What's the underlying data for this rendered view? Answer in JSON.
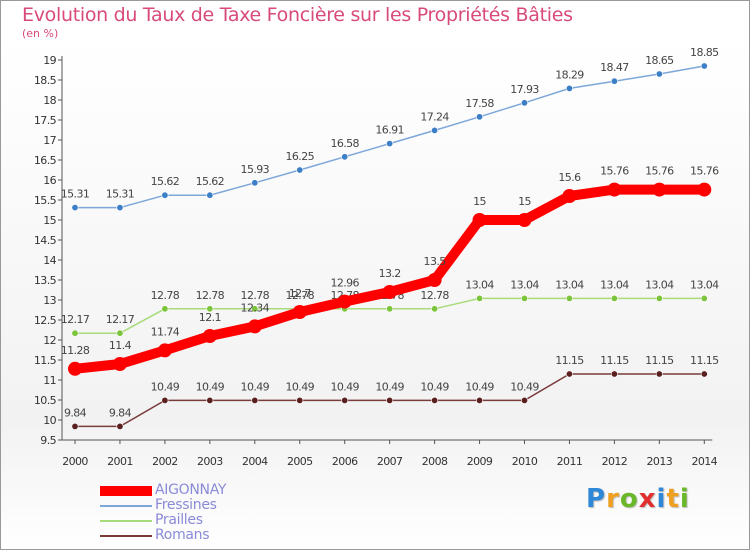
{
  "title": "Evolution du Taux de Taxe Foncière sur les Propriétés Bâties",
  "unit": "(en %)",
  "brand": {
    "text": "Proxiti",
    "letters": [
      "P",
      "r",
      "o",
      "x",
      "i",
      "t",
      "i"
    ],
    "colors": [
      "#2f87d8",
      "#f0a020",
      "#6ab82a",
      "#e03030",
      "#2f87d8",
      "#f0a020",
      "#6ab82a"
    ]
  },
  "chart_data": {
    "type": "line",
    "title": "Evolution du Taux de Taxe Foncière sur les Propriétés Bâties",
    "ylabel": "(en %)",
    "xlabel": "",
    "x": [
      "2000",
      "2001",
      "2002",
      "2003",
      "2004",
      "2005",
      "2006",
      "2007",
      "2008",
      "2009",
      "2010",
      "2011",
      "2012",
      "2013",
      "2014"
    ],
    "ylim": [
      9.5,
      19
    ],
    "yticks": [
      "9.5",
      "10",
      "10.5",
      "11",
      "11.5",
      "12",
      "12.5",
      "13",
      "13.5",
      "14",
      "14.5",
      "15",
      "15.5",
      "16",
      "16.5",
      "17",
      "17.5",
      "18",
      "18.5",
      "19"
    ],
    "grid": false,
    "legend": "bottom-left",
    "series": [
      {
        "name": "AIGONNAY",
        "color": "#ff0000",
        "emphasis": true,
        "values": [
          11.28,
          11.4,
          11.74,
          12.1,
          12.34,
          12.7,
          12.96,
          13.2,
          13.5,
          15,
          15,
          15.6,
          15.76,
          15.76,
          15.76
        ],
        "labels": [
          "11.28",
          "11.4",
          "11.74",
          "12.1",
          "12.34",
          "12.7",
          "12.96",
          "13.2",
          "13.5",
          "15",
          "15",
          "15.6",
          "15.76",
          "15.76",
          "15.76"
        ]
      },
      {
        "name": "Fressines",
        "color": "#7da7d9",
        "marker": "#3d7fc7",
        "values": [
          15.31,
          15.31,
          15.62,
          15.62,
          15.93,
          16.25,
          16.58,
          16.91,
          17.24,
          17.58,
          17.93,
          18.29,
          18.47,
          18.65,
          18.85
        ],
        "labels": [
          "15.31",
          "15.31",
          "15.62",
          "15.62",
          "15.93",
          "16.25",
          "16.58",
          "16.91",
          "17.24",
          "17.58",
          "17.93",
          "18.29",
          "18.47",
          "18.65",
          "18.85"
        ]
      },
      {
        "name": "Prailles",
        "color": "#a8dc7a",
        "marker": "#7cc43c",
        "values": [
          12.17,
          12.17,
          12.78,
          12.78,
          12.78,
          12.78,
          12.78,
          12.78,
          12.78,
          13.04,
          13.04,
          13.04,
          13.04,
          13.04,
          13.04
        ],
        "labels": [
          "12.17",
          "12.17",
          "12.78",
          "12.78",
          "12.78",
          "12.78",
          "12.78",
          "12.78",
          "12.78",
          "13.04",
          "13.04",
          "13.04",
          "13.04",
          "13.04",
          "13.04"
        ]
      },
      {
        "name": "Romans",
        "color": "#7a3b3b",
        "marker": "#5a1f1f",
        "values": [
          9.84,
          9.84,
          10.49,
          10.49,
          10.49,
          10.49,
          10.49,
          10.49,
          10.49,
          10.49,
          10.49,
          11.15,
          11.15,
          11.15,
          11.15
        ],
        "labels": [
          "9.84",
          "9.84",
          "10.49",
          "10.49",
          "10.49",
          "10.49",
          "10.49",
          "10.49",
          "10.49",
          "10.49",
          "10.49",
          "11.15",
          "11.15",
          "11.15",
          "11.15"
        ]
      }
    ]
  }
}
